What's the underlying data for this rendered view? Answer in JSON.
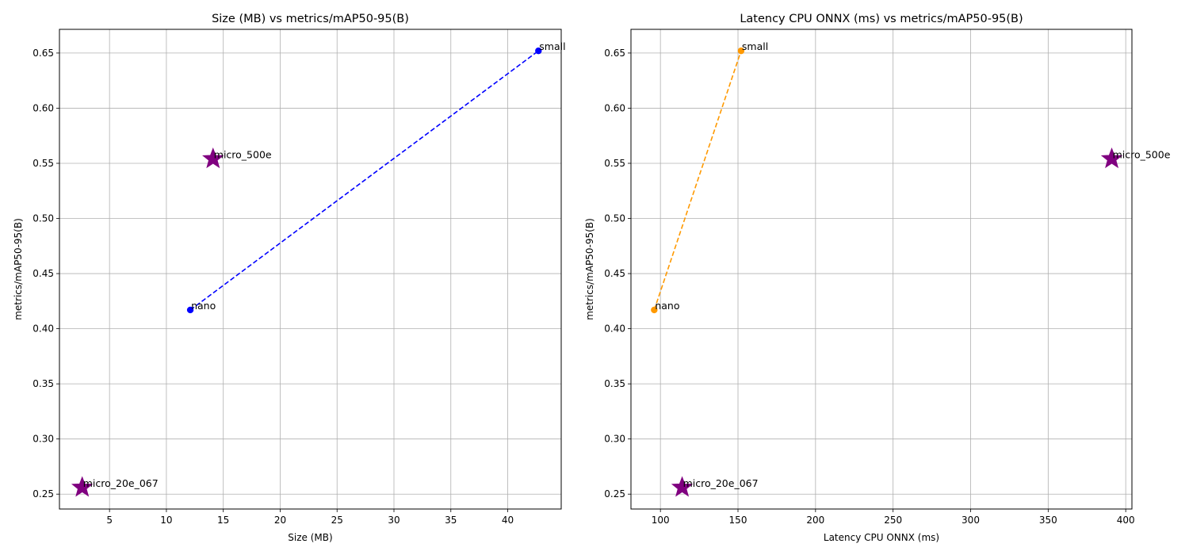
{
  "chart_data": [
    {
      "type": "scatter",
      "title": "Size (MB) vs metrics/mAP50-95(B)",
      "xlabel": "Size (MB)",
      "ylabel": "metrics/mAP50-95(B)",
      "xlim": [
        0.6,
        44.7
      ],
      "ylim": [
        0.2365,
        0.6715
      ],
      "xticks": [
        5,
        10,
        15,
        20,
        25,
        30,
        35,
        40
      ],
      "yticks": [
        0.25,
        0.3,
        0.35,
        0.4,
        0.45,
        0.5,
        0.55,
        0.6,
        0.65
      ],
      "grid": true,
      "line_series": {
        "color": "#0000ff",
        "points": [
          {
            "label": "nano",
            "x": 12.1,
            "y": 0.417
          },
          {
            "label": "small",
            "x": 42.7,
            "y": 0.652
          }
        ]
      },
      "star_points": {
        "color": "#800080",
        "points": [
          {
            "label": "micro_500e",
            "x": 14.1,
            "y": 0.554
          },
          {
            "label": "micro_20e_067",
            "x": 2.6,
            "y": 0.256
          }
        ]
      }
    },
    {
      "type": "scatter",
      "title": "Latency CPU ONNX (ms) vs metrics/mAP50-95(B)",
      "xlabel": "Latency CPU ONNX (ms)",
      "ylabel": "metrics/mAP50-95(B)",
      "xlim": [
        81.0,
        404.0
      ],
      "ylim": [
        0.2365,
        0.6715
      ],
      "xticks": [
        100,
        150,
        200,
        250,
        300,
        350,
        400
      ],
      "yticks": [
        0.25,
        0.3,
        0.35,
        0.4,
        0.45,
        0.5,
        0.55,
        0.6,
        0.65
      ],
      "grid": true,
      "line_series": {
        "color": "#ff9900",
        "points": [
          {
            "label": "nano",
            "x": 96.0,
            "y": 0.417
          },
          {
            "label": "small",
            "x": 152.0,
            "y": 0.652
          }
        ]
      },
      "star_points": {
        "color": "#800080",
        "points": [
          {
            "label": "micro_500e",
            "x": 391.0,
            "y": 0.554
          },
          {
            "label": "micro_20e_067",
            "x": 114.0,
            "y": 0.256
          }
        ]
      }
    }
  ]
}
